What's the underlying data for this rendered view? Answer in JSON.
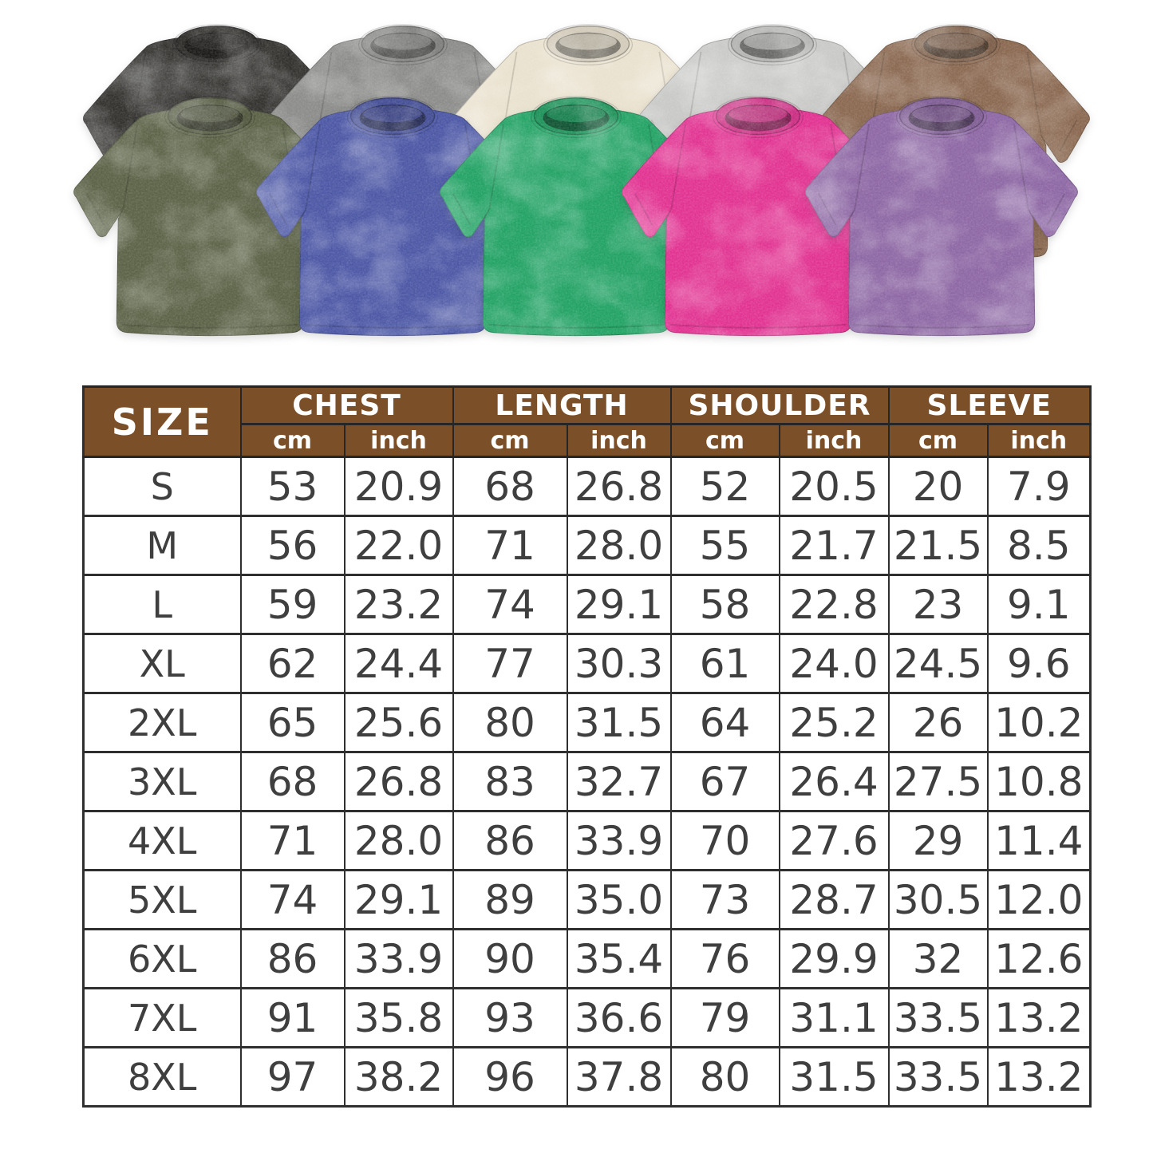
{
  "page": {
    "background": "#ffffff"
  },
  "product_grid": {
    "description": "ten washed oversized t-shirts",
    "back_row": [
      {
        "name": "black",
        "color": "#33322f"
      },
      {
        "name": "gray",
        "color": "#8c8c8a"
      },
      {
        "name": "cream",
        "color": "#eae2cf"
      },
      {
        "name": "light-gray",
        "color": "#c9c9c7"
      },
      {
        "name": "brown",
        "color": "#8b6951"
      }
    ],
    "front_row": [
      {
        "name": "army-green",
        "color": "#5c6347"
      },
      {
        "name": "blue",
        "color": "#4d58a6"
      },
      {
        "name": "green",
        "color": "#23a365"
      },
      {
        "name": "rose-red",
        "color": "#e23392"
      },
      {
        "name": "purple",
        "color": "#8e68a5"
      }
    ]
  },
  "size_chart": {
    "header": {
      "size_label": "SIZE",
      "groups": [
        "CHEST",
        "LENGTH",
        "SHOULDER",
        "SLEEVE"
      ],
      "units": [
        "cm",
        "inch"
      ]
    },
    "rows": [
      {
        "size": "S",
        "values": [
          "53",
          "20.9",
          "68",
          "26.8",
          "52",
          "20.5",
          "20",
          "7.9"
        ]
      },
      {
        "size": "M",
        "values": [
          "56",
          "22.0",
          "71",
          "28.0",
          "55",
          "21.7",
          "21.5",
          "8.5"
        ]
      },
      {
        "size": "L",
        "values": [
          "59",
          "23.2",
          "74",
          "29.1",
          "58",
          "22.8",
          "23",
          "9.1"
        ]
      },
      {
        "size": "XL",
        "values": [
          "62",
          "24.4",
          "77",
          "30.3",
          "61",
          "24.0",
          "24.5",
          "9.6"
        ]
      },
      {
        "size": "2XL",
        "values": [
          "65",
          "25.6",
          "80",
          "31.5",
          "64",
          "25.2",
          "26",
          "10.2"
        ]
      },
      {
        "size": "3XL",
        "values": [
          "68",
          "26.8",
          "83",
          "32.7",
          "67",
          "26.4",
          "27.5",
          "10.8"
        ]
      },
      {
        "size": "4XL",
        "values": [
          "71",
          "28.0",
          "86",
          "33.9",
          "70",
          "27.6",
          "29",
          "11.4"
        ]
      },
      {
        "size": "5XL",
        "values": [
          "74",
          "29.1",
          "89",
          "35.0",
          "73",
          "28.7",
          "30.5",
          "12.0"
        ]
      },
      {
        "size": "6XL",
        "values": [
          "86",
          "33.9",
          "90",
          "35.4",
          "76",
          "29.9",
          "32",
          "12.6"
        ]
      },
      {
        "size": "7XL",
        "values": [
          "91",
          "35.8",
          "93",
          "36.6",
          "79",
          "31.1",
          "33.5",
          "13.2"
        ]
      },
      {
        "size": "8XL",
        "values": [
          "97",
          "38.2",
          "96",
          "37.8",
          "80",
          "31.5",
          "33.5",
          "13.2"
        ]
      }
    ],
    "style": {
      "header_bg": "#7b4f28",
      "header_text": "#ffffff",
      "grid_line": "#2f2f2f",
      "number_color": "#3f3f3f"
    }
  }
}
